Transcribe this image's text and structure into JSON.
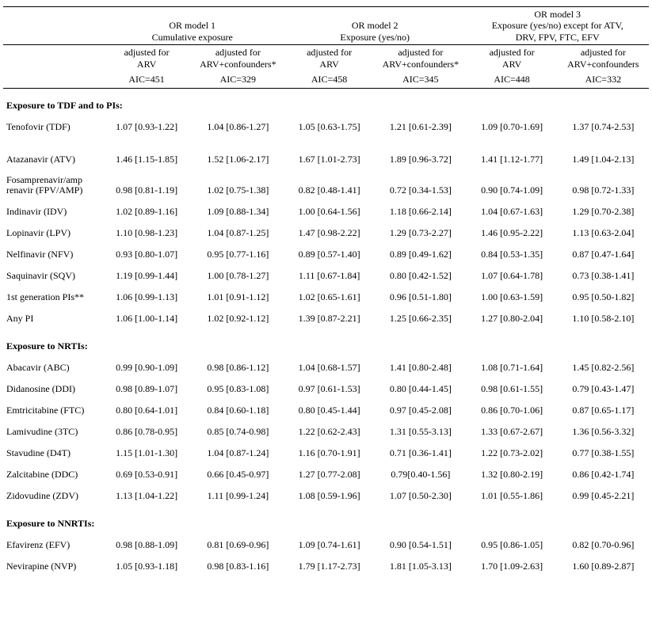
{
  "models": [
    {
      "title_l1": "OR model 1",
      "title_l2": "Cumulative exposure"
    },
    {
      "title_l1": "OR model 2",
      "title_l2": "Exposure (yes/no)"
    },
    {
      "title_l1": "OR model 3",
      "title_l2": "Exposure (yes/no) except for ATV,",
      "title_l3": "DRV, FPV, FTC, EFV"
    }
  ],
  "sub_arv": "adjusted for\nARV",
  "sub_conf": "adjusted for\nARV+confounders*",
  "sub_conf_nostar": "adjusted for\nARV+confounders",
  "aic": [
    "AIC=451",
    "AIC=329",
    "AIC=458",
    "AIC=345",
    "AIC=448",
    "AIC=332"
  ],
  "sections": [
    {
      "header": "Exposure to TDF and to PIs:",
      "rows": [
        {
          "label": "Tenofovir (TDF)",
          "v": [
            "1.07 [0.93-1.22]",
            "1.04 [0.86-1.27]",
            "1.05 [0.63-1.75]",
            "1.21 [0.61-2.39]",
            "1.09 [0.70-1.69]",
            "1.37 [0.74-2.53]"
          ],
          "gap_after": true
        },
        {
          "label": "Atazanavir (ATV)",
          "v": [
            "1.46 [1.15-1.85]",
            "1.52 [1.06-2.17]",
            "1.67 [1.01-2.73]",
            "1.89 [0.96-3.72]",
            "1.41 [1.12-1.77]",
            "1.49 [1.04-2.13]"
          ]
        },
        {
          "label": "Fosamprenavir/amp renavir (FPV/AMP)",
          "multiline": true,
          "v": [
            "0.98 [0.81-1.19]",
            "1.02 [0.75-1.38]",
            "0.82 [0.48-1.41]",
            "0.72 [0.34-1.53]",
            "0.90 [0.74-1.09]",
            "0.98 [0.72-1.33]"
          ]
        },
        {
          "label": "Indinavir (IDV)",
          "v": [
            "1.02 [0.89-1.16]",
            "1.09 [0.88-1.34]",
            "1.00 [0.64-1.56]",
            "1.18 [0.66-2.14]",
            "1.04 [0.67-1.63]",
            "1.29 [0.70-2.38]"
          ]
        },
        {
          "label": "Lopinavir (LPV)",
          "v": [
            "1.10 [0.98-1.23]",
            "1.04 [0.87-1.25]",
            "1.47 [0.98-2.22]",
            "1.29 [0.73-2.27]",
            "1.46 [0.95-2.22]",
            "1.13 [0.63-2.04]"
          ]
        },
        {
          "label": "Nelfinavir (NFV)",
          "v": [
            "0.93 [0.80-1.07]",
            "0.95 [0.77-1.16]",
            "0.89 [0.57-1.40]",
            "0.89 [0.49-1.62]",
            "0.84 [0.53-1.35]",
            "0.87 [0.47-1.64]"
          ]
        },
        {
          "label": "Saquinavir (SQV)",
          "v": [
            "1.19 [0.99-1.44]",
            "1.00 [0.78-1.27]",
            "1.11 [0.67-1.84]",
            "0.80 [0.42-1.52]",
            "1.07 [0.64-1.78]",
            "0.73 [0.38-1.41]"
          ]
        },
        {
          "label": "1st generation PIs**",
          "v": [
            "1.06 [0.99-1.13]",
            "1.01 [0.91-1.12]",
            "1.02 [0.65-1.61]",
            "0.96 [0.51-1.80]",
            "1.00 [0.63-1.59]",
            "0.95 [0.50-1.82]"
          ]
        },
        {
          "label": "Any PI",
          "v": [
            "1.06 [1.00-1.14]",
            "1.02 [0.92-1.12]",
            "1.39 [0.87-2.21]",
            "1.25 [0.66-2.35]",
            "1.27 [0.80-2.04]",
            "1.10 [0.58-2.10]"
          ]
        }
      ]
    },
    {
      "header": "Exposure to NRTIs:",
      "rows": [
        {
          "label": "Abacavir (ABC)",
          "v": [
            "0.99 [0.90-1.09]",
            "0.98 [0.86-1.12]",
            "1.04 [0.68-1.57]",
            "1.41 [0.80-2.48]",
            "1.08 [0.71-1.64]",
            "1.45 [0.82-2.56]"
          ]
        },
        {
          "label": "Didanosine (DDI)",
          "v": [
            "0.98 [0.89-1.07]",
            "0.95 [0.83-1.08]",
            "0.97 [0.61-1.53]",
            "0.80 [0.44-1.45]",
            "0.98 [0.61-1.55]",
            "0.79 [0.43-1.47]"
          ]
        },
        {
          "label": "Emtricitabine (FTC)",
          "v": [
            "0.80 [0.64-1.01]",
            "0.84 [0.60-1.18]",
            "0.80 [0.45-1.44]",
            "0.97 [0.45-2.08]",
            "0.86 [0.70-1.06]",
            "0.87 [0.65-1.17]"
          ]
        },
        {
          "label": "Lamivudine (3TC)",
          "v": [
            "0.86 [0.78-0.95]",
            "0.85 [0.74-0.98]",
            "1.22 [0.62-2.43]",
            "1.31 [0.55-3.13]",
            "1.33 [0.67-2.67]",
            "1.36 [0.56-3.32]"
          ]
        },
        {
          "label": "Stavudine (D4T)",
          "v": [
            "1.15 [1.01-1.30]",
            "1.04 [0.87-1.24]",
            "1.16 [0.70-1.91]",
            "0.71 [0.36-1.41]",
            "1.22 [0.73-2.02]",
            "0.77 [0.38-1.55]"
          ]
        },
        {
          "label": "Zalcitabine (DDC)",
          "v": [
            "0.69 [0.53-0.91]",
            "0.66 [0.45-0.97]",
            "1.27 [0.77-2.08]",
            "0.79[0.40-1.56]",
            "1.32 [0.80-2.19]",
            "0.86 [0.42-1.74]"
          ]
        },
        {
          "label": "Zidovudine (ZDV)",
          "v": [
            "1.13 [1.04-1.22]",
            "1.11 [0.99-1.24]",
            "1.08 [0.59-1.96]",
            "1.07 [0.50-2.30]",
            "1.01 [0.55-1.86]",
            "0.99 [0.45-2.21]"
          ]
        }
      ]
    },
    {
      "header": "Exposure to NNRTIs:",
      "rows": [
        {
          "label": "Efavirenz (EFV)",
          "v": [
            "0.98 [0.88-1.09]",
            "0.81 [0.69-0.96]",
            "1.09 [0.74-1.61]",
            "0.90 [0.54-1.51]",
            "0.95 [0.86-1.05]",
            "0.82 [0.70-0.96]"
          ]
        },
        {
          "label": "Nevirapine (NVP)",
          "v": [
            "1.05 [0.93-1.18]",
            "0.98 [0.83-1.16]",
            "1.79 [1.17-2.73]",
            "1.81 [1.05-3.13]",
            "1.70 [1.09-2.63]",
            "1.60 [0.89-2.87]"
          ]
        }
      ]
    }
  ]
}
